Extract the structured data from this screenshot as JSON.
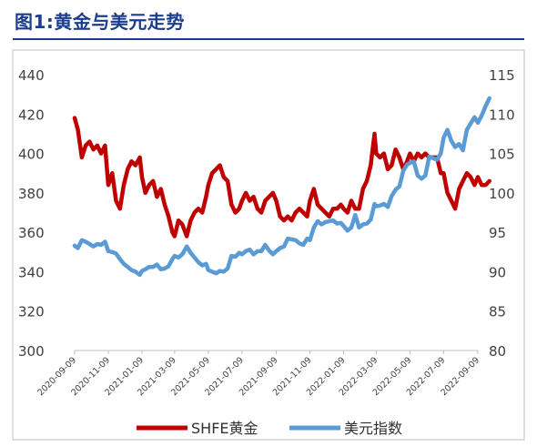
{
  "title": "图1:黄金与美元走势",
  "chart_data": {
    "type": "line",
    "title": "图1:黄金与美元走势",
    "x_ticks": [
      "2020-09-09",
      "2020-11-09",
      "2021-01-09",
      "2021-03-09",
      "2021-05-09",
      "2021-07-09",
      "2021-09-09",
      "2021-11-09",
      "2022-01-09",
      "2022-03-09",
      "2022-05-09",
      "2022-07-09",
      "2022-09-09"
    ],
    "y_left": {
      "ticks": [
        "300",
        "320",
        "340",
        "360",
        "380",
        "400",
        "420",
        "440"
      ],
      "range": [
        300,
        440
      ]
    },
    "y_right": {
      "ticks": [
        "80",
        "85",
        "90",
        "95",
        "100",
        "105",
        "110",
        "115"
      ],
      "range": [
        80,
        115
      ]
    },
    "legend": {
      "position": "bottom",
      "entries": [
        "SHFE黄金",
        "美元指数"
      ]
    },
    "series": [
      {
        "name": "SHFE黄金",
        "axis": "left",
        "color": "#c00000",
        "points": [
          [
            "2020-09-09",
            418
          ],
          [
            "2020-09-15",
            412
          ],
          [
            "2020-09-22",
            398
          ],
          [
            "2020-09-29",
            404
          ],
          [
            "2020-10-06",
            406
          ],
          [
            "2020-10-13",
            402
          ],
          [
            "2020-10-20",
            404
          ],
          [
            "2020-10-27",
            400
          ],
          [
            "2020-11-03",
            404
          ],
          [
            "2020-11-09",
            384
          ],
          [
            "2020-11-16",
            390
          ],
          [
            "2020-11-23",
            376
          ],
          [
            "2020-11-30",
            372
          ],
          [
            "2020-12-07",
            384
          ],
          [
            "2020-12-14",
            392
          ],
          [
            "2020-12-21",
            396
          ],
          [
            "2020-12-28",
            394
          ],
          [
            "2021-01-05",
            398
          ],
          [
            "2021-01-09",
            388
          ],
          [
            "2021-01-15",
            380
          ],
          [
            "2021-01-22",
            384
          ],
          [
            "2021-01-29",
            386
          ],
          [
            "2021-02-05",
            378
          ],
          [
            "2021-02-12",
            382
          ],
          [
            "2021-02-19",
            374
          ],
          [
            "2021-02-26",
            368
          ],
          [
            "2021-03-05",
            360
          ],
          [
            "2021-03-09",
            358
          ],
          [
            "2021-03-16",
            366
          ],
          [
            "2021-03-23",
            364
          ],
          [
            "2021-03-31",
            358
          ],
          [
            "2021-04-07",
            366
          ],
          [
            "2021-04-14",
            370
          ],
          [
            "2021-04-21",
            372
          ],
          [
            "2021-04-28",
            370
          ],
          [
            "2021-05-05",
            378
          ],
          [
            "2021-05-09",
            384
          ],
          [
            "2021-05-16",
            390
          ],
          [
            "2021-05-23",
            392
          ],
          [
            "2021-05-30",
            394
          ],
          [
            "2021-06-06",
            388
          ],
          [
            "2021-06-13",
            386
          ],
          [
            "2021-06-20",
            374
          ],
          [
            "2021-06-27",
            370
          ],
          [
            "2021-07-04",
            372
          ],
          [
            "2021-07-09",
            376
          ],
          [
            "2021-07-16",
            380
          ],
          [
            "2021-07-23",
            376
          ],
          [
            "2021-07-30",
            378
          ],
          [
            "2021-08-06",
            372
          ],
          [
            "2021-08-13",
            370
          ],
          [
            "2021-08-20",
            376
          ],
          [
            "2021-08-27",
            378
          ],
          [
            "2021-09-03",
            380
          ],
          [
            "2021-09-09",
            376
          ],
          [
            "2021-09-16",
            368
          ],
          [
            "2021-09-23",
            366
          ],
          [
            "2021-09-30",
            368
          ],
          [
            "2021-10-07",
            366
          ],
          [
            "2021-10-14",
            370
          ],
          [
            "2021-10-21",
            372
          ],
          [
            "2021-10-28",
            370
          ],
          [
            "2021-11-04",
            368
          ],
          [
            "2021-11-09",
            376
          ],
          [
            "2021-11-16",
            382
          ],
          [
            "2021-11-23",
            374
          ],
          [
            "2021-11-30",
            372
          ],
          [
            "2021-12-07",
            370
          ],
          [
            "2021-12-14",
            368
          ],
          [
            "2021-12-21",
            372
          ],
          [
            "2021-12-28",
            372
          ],
          [
            "2022-01-04",
            374
          ],
          [
            "2022-01-09",
            372
          ],
          [
            "2022-01-16",
            370
          ],
          [
            "2022-01-23",
            376
          ],
          [
            "2022-01-30",
            372
          ],
          [
            "2022-02-06",
            372
          ],
          [
            "2022-02-13",
            382
          ],
          [
            "2022-02-20",
            386
          ],
          [
            "2022-02-27",
            394
          ],
          [
            "2022-03-06",
            410
          ],
          [
            "2022-03-09",
            400
          ],
          [
            "2022-03-16",
            398
          ],
          [
            "2022-03-23",
            400
          ],
          [
            "2022-03-30",
            392
          ],
          [
            "2022-04-06",
            394
          ],
          [
            "2022-04-13",
            402
          ],
          [
            "2022-04-20",
            398
          ],
          [
            "2022-04-27",
            392
          ],
          [
            "2022-05-04",
            396
          ],
          [
            "2022-05-09",
            400
          ],
          [
            "2022-05-16",
            396
          ],
          [
            "2022-05-23",
            400
          ],
          [
            "2022-05-30",
            398
          ],
          [
            "2022-06-06",
            400
          ],
          [
            "2022-06-13",
            398
          ],
          [
            "2022-06-20",
            398
          ],
          [
            "2022-06-27",
            398
          ],
          [
            "2022-07-04",
            390
          ],
          [
            "2022-07-09",
            390
          ],
          [
            "2022-07-16",
            380
          ],
          [
            "2022-07-23",
            376
          ],
          [
            "2022-07-30",
            372
          ],
          [
            "2022-08-06",
            382
          ],
          [
            "2022-08-13",
            386
          ],
          [
            "2022-08-20",
            390
          ],
          [
            "2022-08-27",
            388
          ],
          [
            "2022-09-03",
            384
          ],
          [
            "2022-09-09",
            388
          ],
          [
            "2022-09-16",
            384
          ],
          [
            "2022-09-23",
            384
          ],
          [
            "2022-09-30",
            386
          ]
        ]
      },
      {
        "name": "美元指数",
        "axis": "right",
        "color": "#5b9bd5",
        "points": [
          [
            "2020-09-09",
            93.3
          ],
          [
            "2020-09-15",
            93.0
          ],
          [
            "2020-09-22",
            94.0
          ],
          [
            "2020-09-29",
            93.8
          ],
          [
            "2020-10-06",
            93.5
          ],
          [
            "2020-10-13",
            93.2
          ],
          [
            "2020-10-20",
            93.5
          ],
          [
            "2020-10-27",
            93.4
          ],
          [
            "2020-11-03",
            93.8
          ],
          [
            "2020-11-09",
            92.6
          ],
          [
            "2020-11-16",
            92.5
          ],
          [
            "2020-11-23",
            92.3
          ],
          [
            "2020-11-30",
            91.6
          ],
          [
            "2020-12-07",
            91.0
          ],
          [
            "2020-12-14",
            90.6
          ],
          [
            "2020-12-21",
            90.2
          ],
          [
            "2020-12-28",
            90.0
          ],
          [
            "2021-01-05",
            89.6
          ],
          [
            "2021-01-09",
            90.1
          ],
          [
            "2021-01-15",
            90.3
          ],
          [
            "2021-01-22",
            90.6
          ],
          [
            "2021-01-29",
            90.6
          ],
          [
            "2021-02-05",
            90.9
          ],
          [
            "2021-02-12",
            90.3
          ],
          [
            "2021-02-19",
            90.4
          ],
          [
            "2021-02-26",
            90.7
          ],
          [
            "2021-03-05",
            91.6
          ],
          [
            "2021-03-09",
            92.0
          ],
          [
            "2021-03-16",
            91.8
          ],
          [
            "2021-03-23",
            92.2
          ],
          [
            "2021-03-31",
            93.2
          ],
          [
            "2021-04-07",
            92.4
          ],
          [
            "2021-04-14",
            91.8
          ],
          [
            "2021-04-21",
            91.2
          ],
          [
            "2021-04-28",
            90.8
          ],
          [
            "2021-05-05",
            91.0
          ],
          [
            "2021-05-09",
            90.2
          ],
          [
            "2021-05-16",
            90.0
          ],
          [
            "2021-05-23",
            89.8
          ],
          [
            "2021-05-30",
            90.1
          ],
          [
            "2021-06-06",
            90.0
          ],
          [
            "2021-06-13",
            90.4
          ],
          [
            "2021-06-20",
            92.0
          ],
          [
            "2021-06-27",
            91.9
          ],
          [
            "2021-07-04",
            92.4
          ],
          [
            "2021-07-09",
            92.2
          ],
          [
            "2021-07-16",
            92.6
          ],
          [
            "2021-07-23",
            92.8
          ],
          [
            "2021-07-30",
            92.2
          ],
          [
            "2021-08-06",
            92.6
          ],
          [
            "2021-08-13",
            92.6
          ],
          [
            "2021-08-20",
            93.4
          ],
          [
            "2021-08-27",
            92.7
          ],
          [
            "2021-09-03",
            92.2
          ],
          [
            "2021-09-09",
            92.6
          ],
          [
            "2021-09-16",
            93.0
          ],
          [
            "2021-09-23",
            93.2
          ],
          [
            "2021-09-30",
            94.2
          ],
          [
            "2021-10-07",
            94.1
          ],
          [
            "2021-10-14",
            94.0
          ],
          [
            "2021-10-21",
            93.6
          ],
          [
            "2021-10-28",
            93.4
          ],
          [
            "2021-11-04",
            94.2
          ],
          [
            "2021-11-09",
            94.0
          ],
          [
            "2021-11-16",
            95.6
          ],
          [
            "2021-11-23",
            96.4
          ],
          [
            "2021-11-30",
            96.0
          ],
          [
            "2021-12-07",
            96.3
          ],
          [
            "2021-12-14",
            96.4
          ],
          [
            "2021-12-21",
            96.5
          ],
          [
            "2021-12-28",
            96.1
          ],
          [
            "2022-01-04",
            96.2
          ],
          [
            "2022-01-09",
            95.8
          ],
          [
            "2022-01-16",
            95.2
          ],
          [
            "2022-01-23",
            95.6
          ],
          [
            "2022-01-30",
            97.2
          ],
          [
            "2022-02-06",
            95.6
          ],
          [
            "2022-02-13",
            96.0
          ],
          [
            "2022-02-20",
            96.1
          ],
          [
            "2022-02-27",
            96.6
          ],
          [
            "2022-03-06",
            98.6
          ],
          [
            "2022-03-09",
            98.3
          ],
          [
            "2022-03-16",
            98.4
          ],
          [
            "2022-03-23",
            98.6
          ],
          [
            "2022-03-30",
            98.2
          ],
          [
            "2022-04-06",
            99.6
          ],
          [
            "2022-04-13",
            100.4
          ],
          [
            "2022-04-20",
            100.8
          ],
          [
            "2022-04-27",
            102.8
          ],
          [
            "2022-05-04",
            103.6
          ],
          [
            "2022-05-09",
            103.8
          ],
          [
            "2022-05-16",
            104.0
          ],
          [
            "2022-05-23",
            102.2
          ],
          [
            "2022-05-30",
            101.8
          ],
          [
            "2022-06-06",
            102.2
          ],
          [
            "2022-06-13",
            104.6
          ],
          [
            "2022-06-20",
            104.4
          ],
          [
            "2022-06-27",
            104.2
          ],
          [
            "2022-07-04",
            105.0
          ],
          [
            "2022-07-09",
            107.0
          ],
          [
            "2022-07-16",
            108.0
          ],
          [
            "2022-07-23",
            106.6
          ],
          [
            "2022-07-30",
            105.8
          ],
          [
            "2022-08-06",
            106.2
          ],
          [
            "2022-08-13",
            105.4
          ],
          [
            "2022-08-20",
            108.0
          ],
          [
            "2022-08-27",
            108.8
          ],
          [
            "2022-09-03",
            109.6
          ],
          [
            "2022-09-09",
            108.9
          ],
          [
            "2022-09-16",
            109.8
          ],
          [
            "2022-09-23",
            111.0
          ],
          [
            "2022-09-30",
            112.0
          ]
        ]
      }
    ]
  }
}
